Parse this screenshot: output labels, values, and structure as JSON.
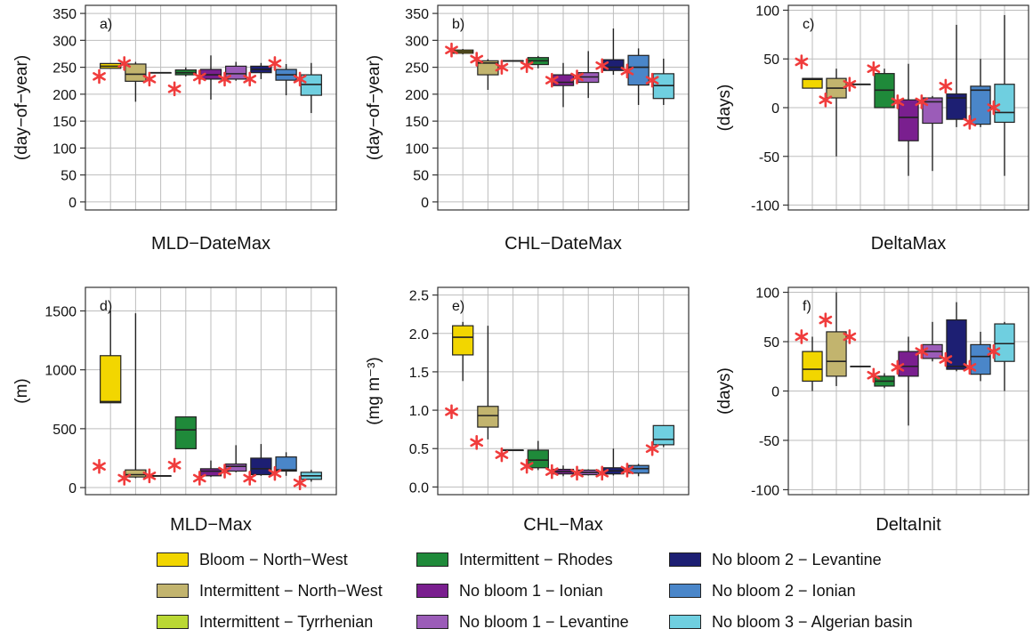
{
  "groups": [
    {
      "name": "Bloom − North−West",
      "color": "#F2D600"
    },
    {
      "name": "Intermittent − North−West",
      "color": "#C2B46E"
    },
    {
      "name": "Intermittent − Tyrrhenian",
      "color": "#BAD834"
    },
    {
      "name": "Intermittent − Rhodes",
      "color": "#1F8A3A"
    },
    {
      "name": "No bloom 1 − Ionian",
      "color": "#7A1F8F"
    },
    {
      "name": "No bloom 1 − Levantine",
      "color": "#9B5CB8"
    },
    {
      "name": "No bloom 2 − Levantine",
      "color": "#1D1F73"
    },
    {
      "name": "No bloom 2 − Ionian",
      "color": "#4A86C9"
    },
    {
      "name": "No bloom 3 − Algerian basin",
      "color": "#6FCFE0"
    }
  ],
  "marker_color": "#F03C3C",
  "chart_data": [
    {
      "type": "box",
      "panel": "a)",
      "xlabel": "MLD−DateMax",
      "ylabel": "(day−of−year)",
      "ylim": [
        -15,
        365
      ],
      "ticks": [
        0,
        50,
        100,
        150,
        200,
        250,
        300,
        350
      ],
      "grid": true,
      "boxes": [
        {
          "q1": 248,
          "median": 252,
          "q3": 257,
          "wlo": 248,
          "whi": 257,
          "star": 233
        },
        {
          "q1": 224,
          "median": 237,
          "q3": 256,
          "wlo": 186,
          "whi": 260,
          "star": 257
        },
        {
          "q1": 240,
          "median": 240,
          "q3": 240,
          "wlo": 240,
          "whi": 240,
          "star": 228
        },
        {
          "q1": 236,
          "median": 240,
          "q3": 245,
          "wlo": 233,
          "whi": 250,
          "star": 210
        },
        {
          "q1": 228,
          "median": 236,
          "q3": 246,
          "wlo": 190,
          "whi": 272,
          "star": 232
        },
        {
          "q1": 228,
          "median": 238,
          "q3": 252,
          "wlo": 225,
          "whi": 260,
          "star": 228
        },
        {
          "q1": 240,
          "median": 246,
          "q3": 252,
          "wlo": 228,
          "whi": 258,
          "star": 228
        },
        {
          "q1": 226,
          "median": 236,
          "q3": 246,
          "wlo": 198,
          "whi": 256,
          "star": 257
        },
        {
          "q1": 198,
          "median": 218,
          "q3": 236,
          "wlo": 165,
          "whi": 258,
          "star": 228
        }
      ]
    },
    {
      "type": "box",
      "panel": "b)",
      "xlabel": "CHL−DateMax",
      "ylabel": "(day−of−year)",
      "ylim": [
        -15,
        365
      ],
      "ticks": [
        0,
        50,
        100,
        150,
        200,
        250,
        300,
        350
      ],
      "grid": true,
      "boxes": [
        {
          "q1": 276,
          "median": 279,
          "q3": 282,
          "wlo": 274,
          "whi": 284,
          "star": 282
        },
        {
          "q1": 236,
          "median": 258,
          "q3": 262,
          "wlo": 208,
          "whi": 265,
          "star": 265
        },
        {
          "q1": 262,
          "median": 262,
          "q3": 262,
          "wlo": 262,
          "whi": 262,
          "star": 250
        },
        {
          "q1": 255,
          "median": 262,
          "q3": 268,
          "wlo": 248,
          "whi": 271,
          "star": 253
        },
        {
          "q1": 216,
          "median": 222,
          "q3": 236,
          "wlo": 176,
          "whi": 258,
          "star": 226
        },
        {
          "q1": 222,
          "median": 232,
          "q3": 240,
          "wlo": 193,
          "whi": 280,
          "star": 232
        },
        {
          "q1": 244,
          "median": 250,
          "q3": 264,
          "wlo": 236,
          "whi": 322,
          "star": 253
        },
        {
          "q1": 217,
          "median": 250,
          "q3": 272,
          "wlo": 180,
          "whi": 285,
          "star": 243
        },
        {
          "q1": 192,
          "median": 216,
          "q3": 238,
          "wlo": 180,
          "whi": 266,
          "star": 226
        }
      ]
    },
    {
      "type": "box",
      "panel": "c)",
      "xlabel": "DeltaMax",
      "ylabel": "(days)",
      "ylim": [
        -105,
        105
      ],
      "ticks": [
        -100,
        -50,
        0,
        50,
        100
      ],
      "grid": true,
      "boxes": [
        {
          "q1": 20,
          "median": 29,
          "q3": 30,
          "wlo": 20,
          "whi": 30,
          "star": 47
        },
        {
          "q1": 10,
          "median": 20,
          "q3": 30,
          "wlo": -50,
          "whi": 40,
          "star": 8
        },
        {
          "q1": 24,
          "median": 24,
          "q3": 24,
          "wlo": 24,
          "whi": 24,
          "star": 24
        },
        {
          "q1": 0,
          "median": 18,
          "q3": 35,
          "wlo": 0,
          "whi": 40,
          "star": 40
        },
        {
          "q1": -34,
          "median": -10,
          "q3": 8,
          "wlo": -70,
          "whi": 45,
          "star": 6
        },
        {
          "q1": -16,
          "median": 6,
          "q3": 10,
          "wlo": -65,
          "whi": 12,
          "star": 6
        },
        {
          "q1": -12,
          "median": 10,
          "q3": 14,
          "wlo": -20,
          "whi": 85,
          "star": 22
        },
        {
          "q1": -17,
          "median": 18,
          "q3": 22,
          "wlo": -20,
          "whi": 50,
          "star": -15
        },
        {
          "q1": -15,
          "median": -5,
          "q3": 24,
          "wlo": -70,
          "whi": 95,
          "star": 0
        }
      ]
    },
    {
      "type": "box",
      "panel": "d)",
      "xlabel": "MLD−Max",
      "ylabel": "(m)",
      "ylim": [
        -60,
        1700
      ],
      "ticks": [
        0,
        500,
        1000,
        1500
      ],
      "grid": true,
      "boxes": [
        {
          "q1": 720,
          "median": 730,
          "q3": 1120,
          "wlo": 720,
          "whi": 1500,
          "star": 180
        },
        {
          "q1": 90,
          "median": 110,
          "q3": 150,
          "wlo": 80,
          "whi": 1480,
          "star": 80
        },
        {
          "q1": 100,
          "median": 100,
          "q3": 100,
          "wlo": 100,
          "whi": 100,
          "star": 100
        },
        {
          "q1": 330,
          "median": 490,
          "q3": 600,
          "wlo": 330,
          "whi": 600,
          "star": 190
        },
        {
          "q1": 100,
          "median": 140,
          "q3": 160,
          "wlo": 90,
          "whi": 230,
          "star": 80
        },
        {
          "q1": 140,
          "median": 180,
          "q3": 200,
          "wlo": 130,
          "whi": 360,
          "star": 140
        },
        {
          "q1": 110,
          "median": 160,
          "q3": 250,
          "wlo": 100,
          "whi": 370,
          "star": 80
        },
        {
          "q1": 140,
          "median": 150,
          "q3": 260,
          "wlo": 100,
          "whi": 300,
          "star": 120
        },
        {
          "q1": 70,
          "median": 100,
          "q3": 130,
          "wlo": 50,
          "whi": 150,
          "star": 40
        }
      ]
    },
    {
      "type": "box",
      "panel": "e)",
      "xlabel": "CHL−Max",
      "ylabel": "(mg m⁻³)",
      "ylim": [
        -0.1,
        2.6
      ],
      "ticks": [
        0.0,
        0.5,
        1.0,
        1.5,
        2.0,
        2.5
      ],
      "tick_labels": [
        "0.0",
        "0.5",
        "1.0",
        "1.5",
        "2.0",
        "2.5"
      ],
      "grid": true,
      "boxes": [
        {
          "q1": 1.72,
          "median": 1.95,
          "q3": 2.1,
          "wlo": 1.38,
          "whi": 2.15,
          "star": 0.98
        },
        {
          "q1": 0.78,
          "median": 0.93,
          "q3": 1.05,
          "wlo": 0.62,
          "whi": 2.1,
          "star": 0.58
        },
        {
          "q1": 0.48,
          "median": 0.48,
          "q3": 0.48,
          "wlo": 0.48,
          "whi": 0.48,
          "star": 0.42
        },
        {
          "q1": 0.25,
          "median": 0.35,
          "q3": 0.48,
          "wlo": 0.22,
          "whi": 0.6,
          "star": 0.27
        },
        {
          "q1": 0.17,
          "median": 0.2,
          "q3": 0.23,
          "wlo": 0.14,
          "whi": 0.28,
          "star": 0.2
        },
        {
          "q1": 0.16,
          "median": 0.19,
          "q3": 0.22,
          "wlo": 0.15,
          "whi": 0.23,
          "star": 0.18
        },
        {
          "q1": 0.17,
          "median": 0.21,
          "q3": 0.25,
          "wlo": 0.15,
          "whi": 0.5,
          "star": 0.18
        },
        {
          "q1": 0.18,
          "median": 0.24,
          "q3": 0.28,
          "wlo": 0.14,
          "whi": 0.3,
          "star": 0.22
        },
        {
          "q1": 0.55,
          "median": 0.62,
          "q3": 0.8,
          "wlo": 0.52,
          "whi": 0.8,
          "star": 0.5
        }
      ]
    },
    {
      "type": "box",
      "panel": "f)",
      "xlabel": "DeltaInit",
      "ylabel": "(days)",
      "ylim": [
        -105,
        105
      ],
      "ticks": [
        -100,
        -50,
        0,
        50,
        100
      ],
      "grid": true,
      "boxes": [
        {
          "q1": 10,
          "median": 22,
          "q3": 40,
          "wlo": 0,
          "whi": 55,
          "star": 55
        },
        {
          "q1": 15,
          "median": 30,
          "q3": 60,
          "wlo": 5,
          "whi": 100,
          "star": 72
        },
        {
          "q1": 25,
          "median": 25,
          "q3": 25,
          "wlo": 25,
          "whi": 25,
          "star": 55
        },
        {
          "q1": 5,
          "median": 10,
          "q3": 15,
          "wlo": 3,
          "whi": 18,
          "star": 16
        },
        {
          "q1": 15,
          "median": 25,
          "q3": 40,
          "wlo": -35,
          "whi": 55,
          "star": 24
        },
        {
          "q1": 33,
          "median": 40,
          "q3": 47,
          "wlo": 30,
          "whi": 70,
          "star": 40
        },
        {
          "q1": 22,
          "median": 25,
          "q3": 72,
          "wlo": 20,
          "whi": 90,
          "star": 32
        },
        {
          "q1": 17,
          "median": 35,
          "q3": 47,
          "wlo": 10,
          "whi": 60,
          "star": 24
        },
        {
          "q1": 30,
          "median": 48,
          "q3": 68,
          "wlo": 0,
          "whi": 70,
          "star": 40
        }
      ]
    }
  ]
}
